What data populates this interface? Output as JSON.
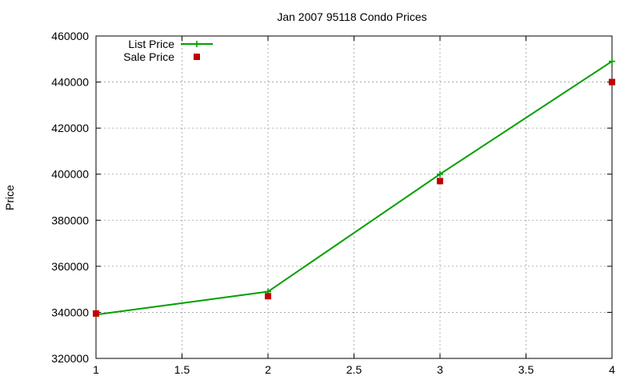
{
  "chart_data": {
    "type": "line",
    "title": "Jan 2007 95118 Condo Prices",
    "xlabel": "",
    "ylabel": "Price",
    "xlim": [
      1,
      4
    ],
    "ylim": [
      320000,
      460000
    ],
    "x_ticks": [
      1,
      1.5,
      2,
      2.5,
      3,
      3.5,
      4
    ],
    "x_tick_labels": [
      "1",
      "1.5",
      "2",
      "2.5",
      "3",
      "3.5",
      "4"
    ],
    "y_ticks": [
      320000,
      340000,
      360000,
      380000,
      400000,
      420000,
      440000,
      460000
    ],
    "y_tick_labels": [
      "320000",
      "340000",
      "360000",
      "380000",
      "400000",
      "420000",
      "440000",
      "460000"
    ],
    "grid": true,
    "legend_position": "top-left",
    "series": [
      {
        "name": "List Price",
        "style": "line-with-plus-markers",
        "color": "#00a000",
        "x": [
          1,
          2,
          3,
          4
        ],
        "y": [
          339000,
          349000,
          400000,
          449000
        ]
      },
      {
        "name": "Sale Price",
        "style": "square-markers",
        "color": "#c00000",
        "x": [
          1,
          2,
          3,
          4
        ],
        "y": [
          339500,
          347000,
          397000,
          440000
        ]
      }
    ]
  }
}
